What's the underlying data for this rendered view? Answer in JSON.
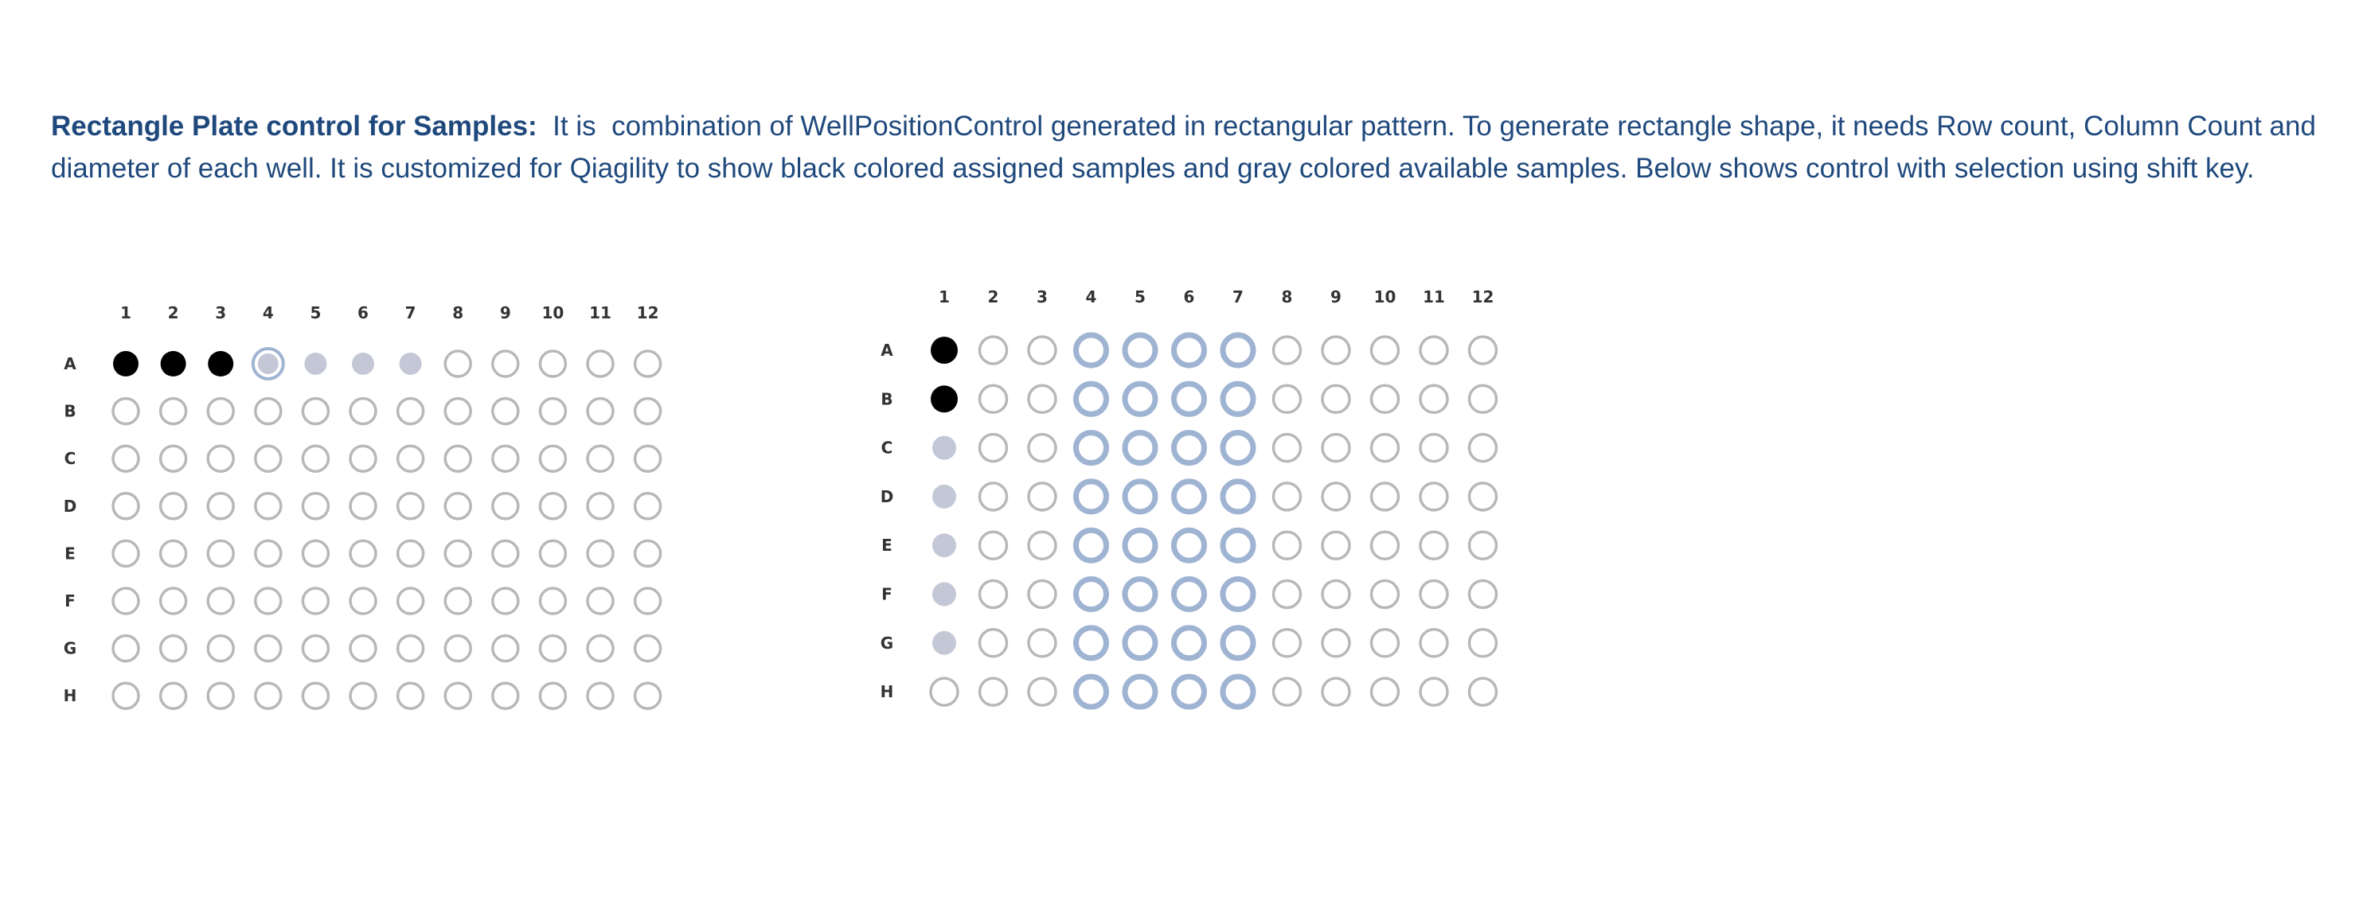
{
  "description": {
    "title": "Rectangle Plate control for Samples:",
    "text": "  It is  combination of WellPositionControl generated in rectangular pattern. To generate rectangle shape, it needs Row count, Column Count and diameter of each well. It is customized for Qiagility to show black colored assigned samples and gray colored available samples. Below shows control with selection using shift key."
  },
  "plates": [
    {
      "columns": [
        "1",
        "2",
        "3",
        "4",
        "5",
        "6",
        "7",
        "8",
        "9",
        "10",
        "11",
        "12"
      ],
      "rows": [
        "A",
        "B",
        "C",
        "D",
        "E",
        "F",
        "G",
        "H"
      ],
      "wells": {
        "assigned": [
          "A1",
          "A2",
          "A3"
        ],
        "available": [
          "A5",
          "A6",
          "A7"
        ],
        "selected": [],
        "available_selected": [
          "A4"
        ]
      }
    },
    {
      "columns": [
        "1",
        "2",
        "3",
        "4",
        "5",
        "6",
        "7",
        "8",
        "9",
        "10",
        "11",
        "12"
      ],
      "rows": [
        "A",
        "B",
        "C",
        "D",
        "E",
        "F",
        "G",
        "H"
      ],
      "wells": {
        "assigned": [
          "A1",
          "B1"
        ],
        "available": [
          "C1",
          "D1",
          "E1",
          "F1",
          "G1"
        ],
        "selected": [
          "A4",
          "A5",
          "A6",
          "A7",
          "B4",
          "B5",
          "B6",
          "B7",
          "C4",
          "C5",
          "C6",
          "C7",
          "D4",
          "D5",
          "D6",
          "D7",
          "E4",
          "E5",
          "E6",
          "E7",
          "F4",
          "F5",
          "F6",
          "F7",
          "G4",
          "G5",
          "G6",
          "G7",
          "H4",
          "H5",
          "H6",
          "H7"
        ],
        "available_selected": []
      }
    }
  ],
  "legend_colors": {
    "assigned": "#000000",
    "available": "#c4c7d6",
    "empty_stroke": "#b8b8b8",
    "selected_stroke": "#9fb4d2",
    "text": "#1f497d"
  }
}
